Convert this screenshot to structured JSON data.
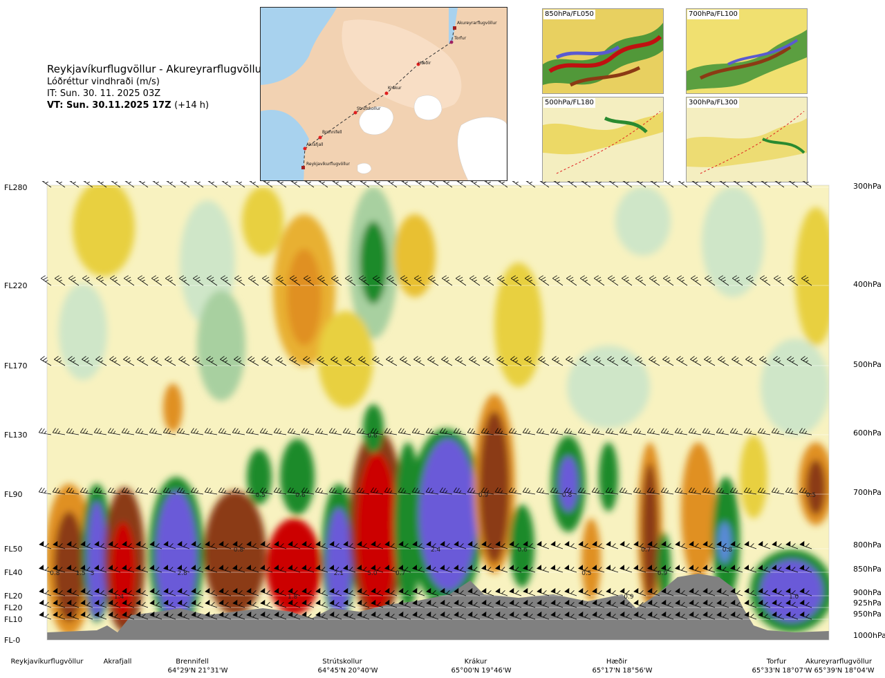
{
  "title": {
    "route": "Reykjavíkurflugvöllur - Akureyrarflugvöllur",
    "parameter": "Lóðréttur vindhraði (m/s)",
    "issue_time": "IT: Sun. 30. 11. 2025 03Z",
    "valid_time": "VT: Sun. 30.11.2025 17Z",
    "lead": "(+14 h)"
  },
  "route_map": {
    "points": [
      "Akureyrarflugvöllur",
      "Torfur",
      "Hæðir",
      "Krákur",
      "Strútskollur",
      "Brennifell",
      "Akrafjall",
      "Reykjavíkurflugvöllur"
    ]
  },
  "thumbnails": [
    {
      "label": "850hPa/FL050"
    },
    {
      "label": "700hPa/FL100"
    },
    {
      "label": "500hPa/FL180"
    },
    {
      "label": "300hPa/FL300"
    }
  ],
  "chart_data": {
    "type": "heatmap",
    "title": "Lóðréttur vindhraði (m/s)",
    "flight_levels": [
      "FL280",
      "FL220",
      "FL170",
      "FL130",
      "FL90",
      "FL50",
      "FL40",
      "FL20",
      "FL20",
      "FL10",
      "FL-0"
    ],
    "pressure_levels": [
      "300hPa",
      "400hPa",
      "500hPa",
      "600hPa",
      "700hPa",
      "800hPa",
      "850hPa",
      "900hPa",
      "925hPa",
      "950hPa",
      "1000hPa"
    ],
    "stations": [
      {
        "name": "Reykjavíkurflugvöllur",
        "coord": ""
      },
      {
        "name": "Akrafjall",
        "coord": ""
      },
      {
        "name": "Brennifell",
        "coord": "64°29'N 21°31'W"
      },
      {
        "name": "Strútskollur",
        "coord": "64°45'N 20°40'W"
      },
      {
        "name": "Krákur",
        "coord": "65°00'N 19°46'W"
      },
      {
        "name": "Hæðir",
        "coord": "65°17'N 18°56'W"
      },
      {
        "name": "Torfur",
        "coord": "65°33'N 18°07'W"
      },
      {
        "name": "Akureyrarflugvöllur",
        "coord": "65°39'N 18°04'W"
      }
    ],
    "value_labels": [
      {
        "text": "0.8",
        "fl": "FL40",
        "pos": 0.01
      },
      {
        "text": "1.5",
        "fl": "FL40",
        "pos": 0.043
      },
      {
        "text": "3",
        "fl": "FL40",
        "pos": 0.058
      },
      {
        "text": "1.4",
        "fl": "FL20",
        "pos": 0.092
      },
      {
        "text": "2.8",
        "fl": "FL40",
        "pos": 0.173
      },
      {
        "text": "0.8",
        "fl": "FL50",
        "pos": 0.245
      },
      {
        "text": "0.5",
        "fl": "FL90",
        "pos": 0.273
      },
      {
        "text": "0.6",
        "fl": "FL90",
        "pos": 0.324
      },
      {
        "text": "1.8",
        "fl": "FL20",
        "pos": 0.314
      },
      {
        "text": "2.1",
        "fl": "FL40",
        "pos": 0.373
      },
      {
        "text": "0.6",
        "fl": "FL130",
        "pos": 0.416
      },
      {
        "text": "5.0",
        "fl": "FL40",
        "pos": 0.416
      },
      {
        "text": "0.7",
        "fl": "FL40",
        "pos": 0.452
      },
      {
        "text": "2.4",
        "fl": "FL50",
        "pos": 0.497
      },
      {
        "text": "0.9",
        "fl": "FL90",
        "pos": 0.558
      },
      {
        "text": "0.6",
        "fl": "FL50",
        "pos": 0.608
      },
      {
        "text": "0.8",
        "fl": "FL90",
        "pos": 0.665
      },
      {
        "text": "0.5",
        "fl": "FL40",
        "pos": 0.69
      },
      {
        "text": "0.7",
        "fl": "FL50",
        "pos": 0.766
      },
      {
        "text": "0.9",
        "fl": "FL20",
        "pos": 0.744
      },
      {
        "text": "0.9",
        "fl": "FL40",
        "pos": 0.787
      },
      {
        "text": "0.8",
        "fl": "FL50",
        "pos": 0.87
      },
      {
        "text": "1.0",
        "fl": "FL20",
        "pos": 0.955
      },
      {
        "text": "0.5",
        "fl": "FL90",
        "pos": 0.977
      }
    ],
    "colors": {
      "descent_strong": "#cc0000",
      "descent": "#8b3a14",
      "descent_mid": "#e09020",
      "descent_weak": "#f0e040",
      "neutral": "#f8f2c0",
      "ascent_weak": "#cfe6c8",
      "ascent": "#1e8a2a",
      "ascent_strong": "#6a5ad8",
      "terrain": "#808080"
    }
  }
}
